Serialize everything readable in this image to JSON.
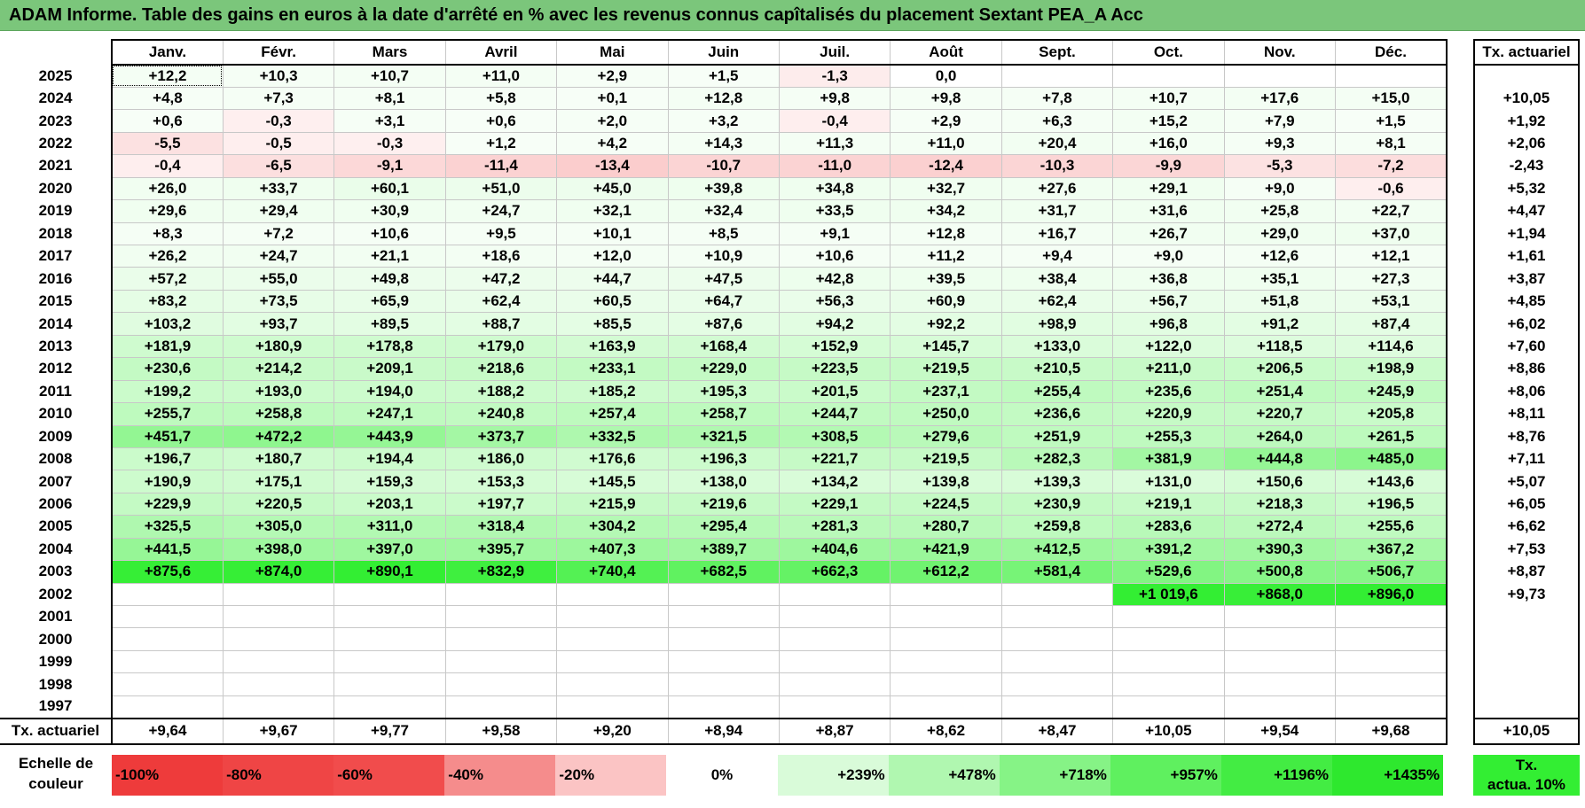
{
  "title": "ADAM Informe. Table des gains en euros à la date d'arrêté en % avec les revenus connus capîtalisés du placement Sextant PEA_A Acc",
  "months": [
    "Janv.",
    "Févr.",
    "Mars",
    "Avril",
    "Mai",
    "Juin",
    "Juil.",
    "Août",
    "Sept.",
    "Oct.",
    "Nov.",
    "Déc."
  ],
  "tx_header": "Tx. actuariel",
  "rows": [
    {
      "year": "2025",
      "values": [
        "+12,2",
        "+10,3",
        "+10,7",
        "+11,0",
        "+2,9",
        "+1,5",
        "-1,3",
        "0,0",
        "",
        "",
        "",
        ""
      ],
      "tx": ""
    },
    {
      "year": "2024",
      "values": [
        "+4,8",
        "+7,3",
        "+8,1",
        "+5,8",
        "+0,1",
        "+12,8",
        "+9,8",
        "+9,8",
        "+7,8",
        "+10,7",
        "+17,6",
        "+15,0"
      ],
      "tx": "+10,05"
    },
    {
      "year": "2023",
      "values": [
        "+0,6",
        "-0,3",
        "+3,1",
        "+0,6",
        "+2,0",
        "+3,2",
        "-0,4",
        "+2,9",
        "+6,3",
        "+15,2",
        "+7,9",
        "+1,5"
      ],
      "tx": "+1,92"
    },
    {
      "year": "2022",
      "values": [
        "-5,5",
        "-0,5",
        "-0,3",
        "+1,2",
        "+4,2",
        "+14,3",
        "+11,3",
        "+11,0",
        "+20,4",
        "+16,0",
        "+9,3",
        "+8,1"
      ],
      "tx": "+2,06"
    },
    {
      "year": "2021",
      "values": [
        "-0,4",
        "-6,5",
        "-9,1",
        "-11,4",
        "-13,4",
        "-10,7",
        "-11,0",
        "-12,4",
        "-10,3",
        "-9,9",
        "-5,3",
        "-7,2"
      ],
      "tx": "-2,43"
    },
    {
      "year": "2020",
      "values": [
        "+26,0",
        "+33,7",
        "+60,1",
        "+51,0",
        "+45,0",
        "+39,8",
        "+34,8",
        "+32,7",
        "+27,6",
        "+29,1",
        "+9,0",
        "-0,6"
      ],
      "tx": "+5,32"
    },
    {
      "year": "2019",
      "values": [
        "+29,6",
        "+29,4",
        "+30,9",
        "+24,7",
        "+32,1",
        "+32,4",
        "+33,5",
        "+34,2",
        "+31,7",
        "+31,6",
        "+25,8",
        "+22,7"
      ],
      "tx": "+4,47"
    },
    {
      "year": "2018",
      "values": [
        "+8,3",
        "+7,2",
        "+10,6",
        "+9,5",
        "+10,1",
        "+8,5",
        "+9,1",
        "+12,8",
        "+16,7",
        "+26,7",
        "+29,0",
        "+37,0"
      ],
      "tx": "+1,94"
    },
    {
      "year": "2017",
      "values": [
        "+26,2",
        "+24,7",
        "+21,1",
        "+18,6",
        "+12,0",
        "+10,9",
        "+10,6",
        "+11,2",
        "+9,4",
        "+9,0",
        "+12,6",
        "+12,1"
      ],
      "tx": "+1,61"
    },
    {
      "year": "2016",
      "values": [
        "+57,2",
        "+55,0",
        "+49,8",
        "+47,2",
        "+44,7",
        "+47,5",
        "+42,8",
        "+39,5",
        "+38,4",
        "+36,8",
        "+35,1",
        "+27,3"
      ],
      "tx": "+3,87"
    },
    {
      "year": "2015",
      "values": [
        "+83,2",
        "+73,5",
        "+65,9",
        "+62,4",
        "+60,5",
        "+64,7",
        "+56,3",
        "+60,9",
        "+62,4",
        "+56,7",
        "+51,8",
        "+53,1"
      ],
      "tx": "+4,85"
    },
    {
      "year": "2014",
      "values": [
        "+103,2",
        "+93,7",
        "+89,5",
        "+88,7",
        "+85,5",
        "+87,6",
        "+94,2",
        "+92,2",
        "+98,9",
        "+96,8",
        "+91,2",
        "+87,4"
      ],
      "tx": "+6,02"
    },
    {
      "year": "2013",
      "values": [
        "+181,9",
        "+180,9",
        "+178,8",
        "+179,0",
        "+163,9",
        "+168,4",
        "+152,9",
        "+145,7",
        "+133,0",
        "+122,0",
        "+118,5",
        "+114,6"
      ],
      "tx": "+7,60"
    },
    {
      "year": "2012",
      "values": [
        "+230,6",
        "+214,2",
        "+209,1",
        "+218,6",
        "+233,1",
        "+229,0",
        "+223,5",
        "+219,5",
        "+210,5",
        "+211,0",
        "+206,5",
        "+198,9"
      ],
      "tx": "+8,86"
    },
    {
      "year": "2011",
      "values": [
        "+199,2",
        "+193,0",
        "+194,0",
        "+188,2",
        "+185,2",
        "+195,3",
        "+201,5",
        "+237,1",
        "+255,4",
        "+235,6",
        "+251,4",
        "+245,9"
      ],
      "tx": "+8,06"
    },
    {
      "year": "2010",
      "values": [
        "+255,7",
        "+258,8",
        "+247,1",
        "+240,8",
        "+257,4",
        "+258,7",
        "+244,7",
        "+250,0",
        "+236,6",
        "+220,9",
        "+220,7",
        "+205,8"
      ],
      "tx": "+8,11"
    },
    {
      "year": "2009",
      "values": [
        "+451,7",
        "+472,2",
        "+443,9",
        "+373,7",
        "+332,5",
        "+321,5",
        "+308,5",
        "+279,6",
        "+251,9",
        "+255,3",
        "+264,0",
        "+261,5"
      ],
      "tx": "+8,76"
    },
    {
      "year": "2008",
      "values": [
        "+196,7",
        "+180,7",
        "+194,4",
        "+186,0",
        "+176,6",
        "+196,3",
        "+221,7",
        "+219,5",
        "+282,3",
        "+381,9",
        "+444,8",
        "+485,0"
      ],
      "tx": "+7,11"
    },
    {
      "year": "2007",
      "values": [
        "+190,9",
        "+175,1",
        "+159,3",
        "+153,3",
        "+145,5",
        "+138,0",
        "+134,2",
        "+139,8",
        "+139,3",
        "+131,0",
        "+150,6",
        "+143,6"
      ],
      "tx": "+5,07"
    },
    {
      "year": "2006",
      "values": [
        "+229,9",
        "+220,5",
        "+203,1",
        "+197,7",
        "+215,9",
        "+219,6",
        "+229,1",
        "+224,5",
        "+230,9",
        "+219,1",
        "+218,3",
        "+196,5"
      ],
      "tx": "+6,05"
    },
    {
      "year": "2005",
      "values": [
        "+325,5",
        "+305,0",
        "+311,0",
        "+318,4",
        "+304,2",
        "+295,4",
        "+281,3",
        "+280,7",
        "+259,8",
        "+283,6",
        "+272,4",
        "+255,6"
      ],
      "tx": "+6,62"
    },
    {
      "year": "2004",
      "values": [
        "+441,5",
        "+398,0",
        "+397,0",
        "+395,7",
        "+407,3",
        "+389,7",
        "+404,6",
        "+421,9",
        "+412,5",
        "+391,2",
        "+390,3",
        "+367,2"
      ],
      "tx": "+7,53"
    },
    {
      "year": "2003",
      "values": [
        "+875,6",
        "+874,0",
        "+890,1",
        "+832,9",
        "+740,4",
        "+682,5",
        "+662,3",
        "+612,2",
        "+581,4",
        "+529,6",
        "+500,8",
        "+506,7"
      ],
      "tx": "+8,87"
    },
    {
      "year": "2002",
      "values": [
        "",
        "",
        "",
        "",
        "",
        "",
        "",
        "",
        "",
        "+1 019,6",
        "+868,0",
        "+896,0"
      ],
      "tx": "+9,73"
    },
    {
      "year": "2001",
      "values": [
        "",
        "",
        "",
        "",
        "",
        "",
        "",
        "",
        "",
        "",
        "",
        ""
      ],
      "tx": ""
    },
    {
      "year": "2000",
      "values": [
        "",
        "",
        "",
        "",
        "",
        "",
        "",
        "",
        "",
        "",
        "",
        ""
      ],
      "tx": ""
    },
    {
      "year": "1999",
      "values": [
        "",
        "",
        "",
        "",
        "",
        "",
        "",
        "",
        "",
        "",
        "",
        ""
      ],
      "tx": ""
    },
    {
      "year": "1998",
      "values": [
        "",
        "",
        "",
        "",
        "",
        "",
        "",
        "",
        "",
        "",
        "",
        ""
      ],
      "tx": ""
    },
    {
      "year": "1997",
      "values": [
        "",
        "",
        "",
        "",
        "",
        "",
        "",
        "",
        "",
        "",
        "",
        ""
      ],
      "tx": ""
    }
  ],
  "footer": {
    "label": "Tx. actuariel",
    "values": [
      "+9,64",
      "+9,67",
      "+9,77",
      "+9,58",
      "+9,20",
      "+8,94",
      "+8,87",
      "+8,62",
      "+8,47",
      "+10,05",
      "+9,54",
      "+9,68"
    ],
    "tx": "+10,05"
  },
  "scale": {
    "label_line1": "Echelle de",
    "label_line2": "couleur",
    "items": [
      {
        "text": "-100%",
        "color": "#ee3b3b",
        "align": "left"
      },
      {
        "text": "-80%",
        "color": "#ef4545",
        "align": "left"
      },
      {
        "text": "-60%",
        "color": "#f14c4c",
        "align": "left"
      },
      {
        "text": "-40%",
        "color": "#f58c8c",
        "align": "left"
      },
      {
        "text": "-20%",
        "color": "#fbc4c4",
        "align": "left"
      },
      {
        "text": "0%",
        "color": "#ffffff",
        "align": "center"
      },
      {
        "text": "+239%",
        "color": "#d9fbd9",
        "align": "right"
      },
      {
        "text": "+478%",
        "color": "#b0f7b0",
        "align": "right"
      },
      {
        "text": "+718%",
        "color": "#86f386",
        "align": "right"
      },
      {
        "text": "+957%",
        "color": "#5ff05f",
        "align": "right"
      },
      {
        "text": "+1196%",
        "color": "#43ec43",
        "align": "right"
      },
      {
        "text": "+1435%",
        "color": "#2ee82e",
        "align": "right"
      }
    ],
    "tx_line1": "Tx.",
    "tx_line2": "actua. 10%"
  },
  "colors": {
    "title_bg": "#7bc67b",
    "positive": "#33ee33",
    "negative": "#ee3b3b"
  }
}
